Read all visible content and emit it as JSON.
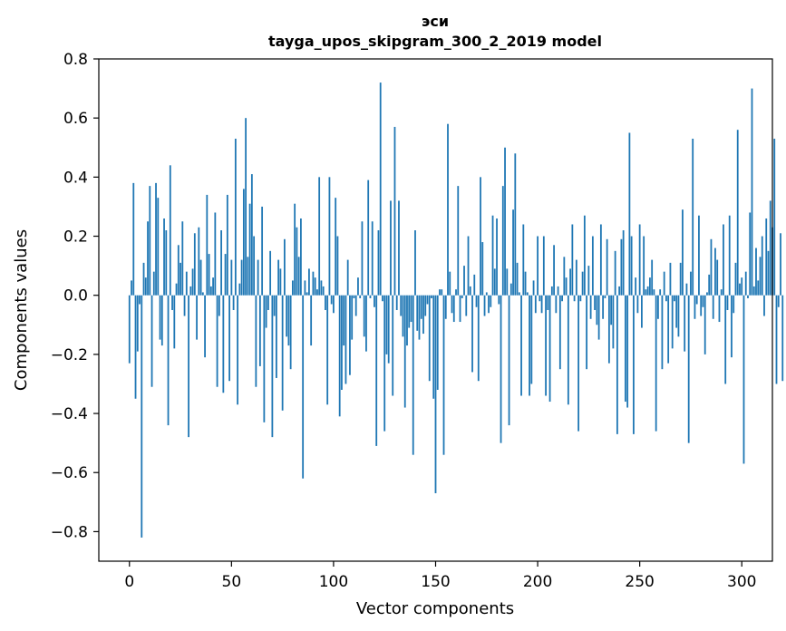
{
  "chart_data": {
    "type": "bar",
    "title_line1": "эси",
    "title_line2": "tayga_upos_skipgram_300_2_2019 model",
    "xlabel": "Vector components",
    "ylabel": "Components values",
    "xlim": [
      -15,
      315
    ],
    "ylim": [
      -0.9,
      0.8
    ],
    "xticks": [
      0,
      50,
      100,
      150,
      200,
      250,
      300
    ],
    "xtick_labels": [
      "0",
      "50",
      "100",
      "150",
      "200",
      "250",
      "300"
    ],
    "yticks": [
      -0.8,
      -0.6,
      -0.4,
      -0.2,
      0.0,
      0.2,
      0.4,
      0.6,
      0.8
    ],
    "ytick_labels": [
      "−0.8",
      "−0.6",
      "−0.4",
      "−0.2",
      "0.0",
      "0.2",
      "0.4",
      "0.6",
      "0.8"
    ],
    "bar_color": "#1f77b4",
    "values": [
      -0.23,
      0.05,
      0.38,
      -0.35,
      -0.19,
      -0.03,
      -0.82,
      0.11,
      0.06,
      0.25,
      0.37,
      -0.31,
      0.08,
      0.38,
      0.33,
      -0.15,
      -0.17,
      0.26,
      0.22,
      -0.44,
      0.44,
      -0.05,
      -0.18,
      0.04,
      0.17,
      0.11,
      0.25,
      -0.07,
      0.08,
      -0.48,
      0.03,
      0.09,
      0.21,
      -0.15,
      0.23,
      0.12,
      0.01,
      -0.21,
      0.34,
      0.14,
      0.03,
      0.06,
      0.28,
      -0.31,
      -0.07,
      0.22,
      -0.33,
      0.14,
      0.34,
      -0.29,
      0.12,
      -0.05,
      0.53,
      -0.37,
      0.04,
      0.12,
      0.36,
      0.6,
      0.13,
      0.31,
      0.41,
      0.2,
      -0.31,
      0.12,
      -0.24,
      0.3,
      -0.43,
      -0.11,
      -0.05,
      0.15,
      -0.48,
      -0.07,
      -0.28,
      0.12,
      0.09,
      -0.39,
      0.19,
      -0.14,
      -0.17,
      -0.25,
      0.05,
      0.31,
      0.23,
      0.13,
      0.26,
      -0.62,
      0.05,
      0.01,
      0.09,
      -0.17,
      0.08,
      0.06,
      0.02,
      0.4,
      0.05,
      0.03,
      -0.05,
      -0.37,
      0.4,
      -0.03,
      -0.06,
      0.33,
      0.2,
      -0.41,
      -0.32,
      -0.17,
      -0.3,
      0.12,
      -0.27,
      -0.15,
      -0.01,
      -0.07,
      0.06,
      -0.01,
      0.25,
      -0.14,
      -0.19,
      0.39,
      -0.01,
      0.25,
      -0.04,
      -0.51,
      0.22,
      0.72,
      -0.02,
      -0.46,
      -0.2,
      -0.23,
      0.32,
      -0.34,
      0.57,
      -0.05,
      0.32,
      -0.07,
      -0.14,
      -0.38,
      -0.17,
      -0.11,
      -0.09,
      -0.54,
      0.22,
      -0.12,
      -0.15,
      -0.08,
      -0.13,
      -0.07,
      -0.03,
      -0.29,
      -0.01,
      -0.35,
      -0.67,
      -0.32,
      0.02,
      0.02,
      -0.54,
      -0.08,
      0.58,
      0.08,
      -0.06,
      -0.09,
      0.02,
      0.37,
      -0.09,
      -0.01,
      0.1,
      -0.07,
      0.2,
      0.03,
      -0.26,
      0.07,
      -0.04,
      -0.29,
      0.4,
      0.18,
      -0.07,
      0.01,
      -0.06,
      -0.04,
      0.27,
      0.09,
      0.26,
      -0.03,
      -0.5,
      0.37,
      0.5,
      0.09,
      -0.44,
      0.04,
      0.29,
      0.48,
      0.11,
      0.01,
      -0.34,
      0.24,
      0.08,
      0.01,
      -0.34,
      -0.3,
      0.05,
      -0.06,
      0.2,
      -0.02,
      -0.06,
      0.2,
      -0.34,
      -0.05,
      -0.36,
      0.03,
      0.17,
      -0.06,
      0.03,
      -0.25,
      -0.02,
      0.13,
      0.06,
      -0.37,
      0.09,
      0.24,
      -0.02,
      0.12,
      -0.46,
      -0.02,
      0.08,
      0.27,
      -0.25,
      0.1,
      -0.08,
      0.2,
      -0.05,
      -0.1,
      -0.15,
      0.24,
      -0.08,
      -0.01,
      0.19,
      -0.23,
      -0.1,
      -0.18,
      0.15,
      -0.47,
      0.03,
      0.19,
      0.22,
      -0.36,
      -0.38,
      0.55,
      0.2,
      -0.47,
      0.06,
      -0.06,
      0.24,
      -0.11,
      0.2,
      0.02,
      0.03,
      0.06,
      0.12,
      0.02,
      -0.46,
      -0.08,
      0.02,
      -0.25,
      0.08,
      -0.02,
      -0.23,
      0.11,
      -0.18,
      -0.02,
      -0.11,
      -0.14,
      0.11,
      0.29,
      -0.19,
      0.04,
      -0.5,
      0.08,
      0.53,
      -0.08,
      -0.03,
      0.27,
      -0.07,
      -0.04,
      -0.2,
      0.01,
      0.07,
      0.19,
      -0.08,
      0.16,
      0.12,
      -0.09,
      0.02,
      0.24,
      -0.3,
      -0.05,
      0.27,
      -0.21,
      -0.06,
      0.11,
      0.56,
      0.04,
      0.06,
      -0.57,
      0.08,
      -0.01,
      0.28,
      0.7,
      0.03,
      0.16,
      0.05,
      0.13,
      0.2,
      -0.07,
      0.26,
      0.15,
      0.32,
      0.23,
      0.53,
      -0.3,
      -0.04,
      0.21,
      -0.29
    ]
  }
}
